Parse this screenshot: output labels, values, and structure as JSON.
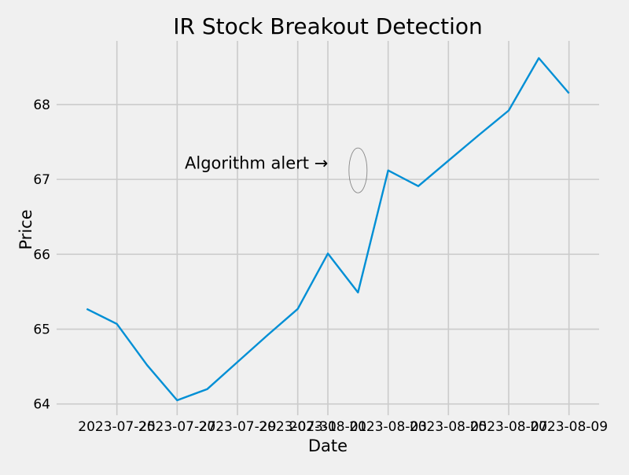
{
  "chart_data": {
    "type": "line",
    "title": "IR Stock Breakout Detection",
    "xlabel": "Date",
    "ylabel": "Price",
    "x": [
      "2023-07-24",
      "2023-07-25",
      "2023-07-26",
      "2023-07-27",
      "2023-07-28",
      "2023-07-29",
      "2023-07-30",
      "2023-07-31",
      "2023-08-01",
      "2023-08-02",
      "2023-08-03",
      "2023-08-04",
      "2023-08-05",
      "2023-08-06",
      "2023-08-07",
      "2023-08-08",
      "2023-08-09"
    ],
    "series": [
      {
        "values": [
          65.27,
          65.07,
          64.52,
          64.05,
          64.2,
          64.56,
          64.92,
          65.27,
          66.01,
          65.49,
          67.12,
          66.91,
          67.25,
          67.59,
          67.92,
          68.62,
          68.15
        ],
        "color": "#008fd5"
      }
    ],
    "x_tick_labels": [
      "2023-07-25",
      "2023-07-27",
      "2023-07-29",
      "2023-07-31",
      "2023-08-01",
      "2023-08-03",
      "2023-08-05",
      "2023-08-07",
      "2023-08-09"
    ],
    "x_tick_dates": [
      "2023-07-25",
      "2023-07-27",
      "2023-07-29",
      "2023-07-31",
      "2023-08-01",
      "2023-08-03",
      "2023-08-05",
      "2023-08-07",
      "2023-08-09"
    ],
    "x_grid_dates": [
      "2023-07-25",
      "2023-07-27",
      "2023-07-29",
      "2023-07-31",
      "2023-08-01",
      "2023-08-03",
      "2023-08-05",
      "2023-08-07",
      "2023-08-09"
    ],
    "y_ticks": [
      64,
      65,
      66,
      67,
      68
    ],
    "xlim": [
      "2023-07-23",
      "2023-08-10"
    ],
    "ylim": [
      63.85,
      68.85
    ],
    "grid": true,
    "annotation": {
      "text": "Algorithm alert →",
      "x": "2023-08-02",
      "y": 67.12
    },
    "colors": {
      "background": "#f0f0f0",
      "grid": "#cbcbcb",
      "line": "#008fd5"
    }
  }
}
